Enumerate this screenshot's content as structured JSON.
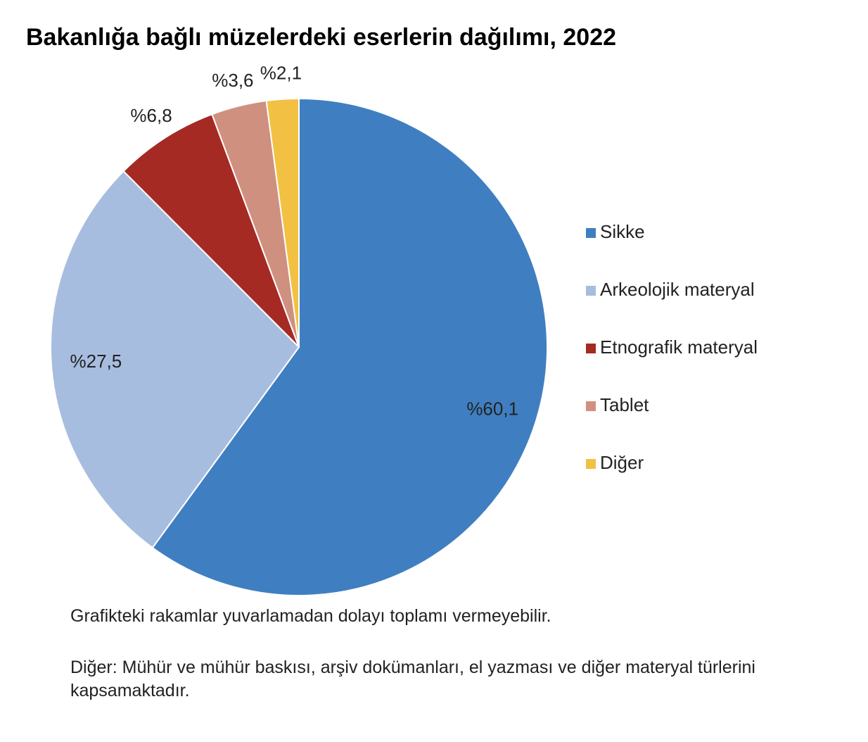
{
  "chart_data": {
    "type": "pie",
    "title": "Bakanlığa bağlı müzelerdeki eserlerin dağılımı, 2022",
    "categories": [
      "Sikke",
      "Arkeolojik materyal",
      "Etnografik materyal",
      "Tablet",
      "Diğer"
    ],
    "values": [
      60.1,
      27.5,
      6.8,
      3.6,
      2.1
    ],
    "value_labels": [
      "%60,1",
      "%27,5",
      "%6,8",
      "%3,6",
      "%2,1"
    ],
    "colors": [
      "#3f7fc1",
      "#a7bde0",
      "#a52a24",
      "#d0907f",
      "#f2c143"
    ],
    "legend": "right",
    "notes": [
      "Grafikteki rakamlar yuvarlamadan dolayı toplamı vermeyebilir.",
      "Diğer: Mühür ve mühür baskısı, arşiv dokümanları, el yazması ve diğer materyal türlerini kapsamaktadır."
    ]
  }
}
